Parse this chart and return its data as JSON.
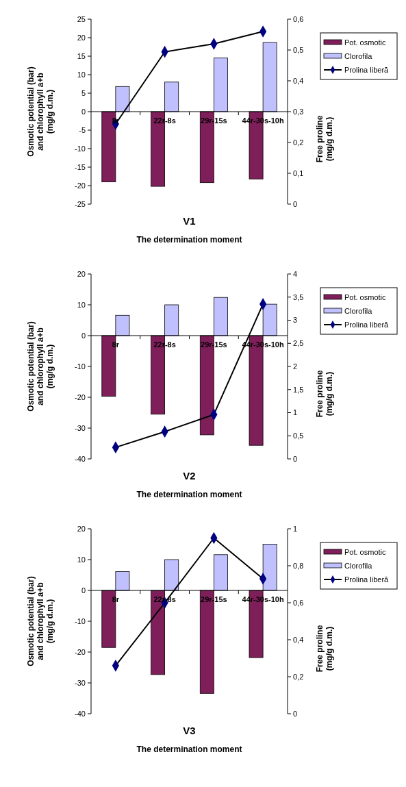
{
  "chart_data": [
    {
      "type": "bar",
      "title": "V1",
      "xlabel": "The determination moment",
      "ylabel": "Osmotic potential (bar) and chlorophyll a+b (mg/g d.m.)",
      "y2label": "Free proline (mg/g d.m.)",
      "categories": [
        "8r",
        "22r-8s",
        "29r-15s",
        "44r-30s-10h"
      ],
      "series": [
        {
          "name": "Pot. osmotic",
          "color": "#7f1f5a",
          "values": [
            -19,
            -20.2,
            -19.2,
            -18.2
          ]
        },
        {
          "name": "Clorofila",
          "color": "#c0c0ff",
          "values": [
            6.8,
            8,
            14.5,
            18.7
          ]
        },
        {
          "name": "Prolina liberă",
          "type": "line",
          "axis": "y2",
          "color": "#000080",
          "values": [
            0.26,
            0.494,
            0.52,
            0.56
          ]
        }
      ],
      "ylim": [
        -25,
        25
      ],
      "yticks": [
        -25,
        -20,
        -15,
        -10,
        -5,
        0,
        5,
        10,
        15,
        20,
        25
      ],
      "y2lim": [
        0,
        0.6
      ],
      "y2ticks": [
        {
          "value": 0,
          "label": "0"
        },
        {
          "value": 0.1,
          "label": "0,1"
        },
        {
          "value": 0.2,
          "label": "0,2"
        },
        {
          "value": 0.3,
          "label": "0,3"
        },
        {
          "value": 0.4,
          "label": "0,4"
        },
        {
          "value": 0.5,
          "label": "0,5"
        },
        {
          "value": 0.6,
          "label": "0,6"
        }
      ],
      "legend": "right",
      "marker": "diamond",
      "grid": false
    },
    {
      "type": "bar",
      "title": "V2",
      "xlabel": "The determination moment",
      "ylabel": "Osmotic potential (bar) and chlorophyll a+b (mg/g d.m.)",
      "y2label": "Free proline (mg/g d.m.)",
      "categories": [
        "8r",
        "22r-8s",
        "29r-15s",
        "44r-30s-10h"
      ],
      "series": [
        {
          "name": "Pot. osmotic",
          "color": "#7f1f5a",
          "values": [
            -19.7,
            -25.5,
            -32.2,
            -35.6
          ]
        },
        {
          "name": "Clorofila",
          "color": "#c0c0ff",
          "values": [
            6.6,
            10,
            12.4,
            10.2
          ]
        },
        {
          "name": "Prolina liberă",
          "type": "line",
          "axis": "y2",
          "color": "#000080",
          "values": [
            0.25,
            0.59,
            0.96,
            3.35
          ]
        }
      ],
      "ylim": [
        -40,
        20
      ],
      "yticks": [
        -40,
        -30,
        -20,
        -10,
        0,
        10,
        20
      ],
      "y2lim": [
        0,
        4
      ],
      "y2ticks": [
        0,
        {
          "value": 0.5,
          "label": "0,5"
        },
        1,
        {
          "value": 1.5,
          "label": "1,5"
        },
        2,
        {
          "value": 2.5,
          "label": "2,5"
        },
        3,
        {
          "value": 3.5,
          "label": "3,5"
        },
        4
      ],
      "legend": "right",
      "marker": "diamond",
      "grid": false
    },
    {
      "type": "bar",
      "title": "V3",
      "xlabel": "The determination moment",
      "ylabel": "Osmotic potential (bar) and chlorophyll a+b (mg/g d.m.)",
      "y2label": "Free proline (mg/g d.m.)",
      "categories": [
        "8r",
        "22r-8s",
        "29r-15s",
        "44r-30s-10h"
      ],
      "series": [
        {
          "name": "Pot. osmotic",
          "color": "#7f1f5a",
          "values": [
            -18.5,
            -27.3,
            -33.4,
            -21.8
          ]
        },
        {
          "name": "Clorofila",
          "color": "#c0c0ff",
          "values": [
            6.1,
            10,
            11.6,
            15
          ]
        },
        {
          "name": "Prolina liberă",
          "type": "line",
          "axis": "y2",
          "color": "#000080",
          "values": [
            0.26,
            0.6,
            0.95,
            0.73
          ]
        }
      ],
      "ylim": [
        -40,
        20
      ],
      "yticks": [
        -40,
        -30,
        -20,
        -10,
        0,
        10,
        20
      ],
      "y2lim": [
        0,
        1
      ],
      "y2ticks": [
        0,
        {
          "value": 0.2,
          "label": "0,2"
        },
        {
          "value": 0.4,
          "label": "0,4"
        },
        {
          "value": 0.6,
          "label": "0,6"
        },
        {
          "value": 0.8,
          "label": "0,8"
        },
        1
      ],
      "legend": "right",
      "marker": "diamond",
      "grid": false
    }
  ]
}
